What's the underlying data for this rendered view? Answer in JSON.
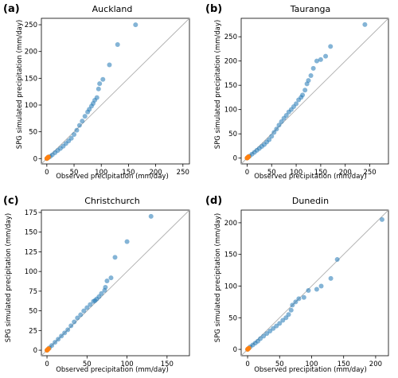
{
  "colors": {
    "main_points": "#1f77b4",
    "origin_points": "#ff7f0e",
    "identity_line": "#b0b0b0"
  },
  "chart_data": [
    {
      "type": "scatter",
      "letter": "(a)",
      "title": "Auckland",
      "xlabel": "Observed precipitation (mm/day)",
      "ylabel": "SPG simulated precipitation (mm/day)",
      "xlim": [
        -10,
        262
      ],
      "ylim": [
        -10,
        262
      ],
      "xticks": [
        0,
        50,
        100,
        150,
        200,
        250
      ],
      "yticks": [
        0,
        50,
        100,
        150,
        200,
        250
      ],
      "identity_line": true,
      "series": [
        {
          "values": [
            [
              0,
              0
            ],
            [
              3,
              2
            ],
            [
              6,
              4
            ],
            [
              10,
              7
            ],
            [
              15,
              11
            ],
            [
              20,
              15
            ],
            [
              25,
              19
            ],
            [
              30,
              23
            ],
            [
              35,
              28
            ],
            [
              40,
              33
            ],
            [
              45,
              38
            ],
            [
              50,
              45
            ],
            [
              55,
              53
            ],
            [
              60,
              62
            ],
            [
              65,
              70
            ],
            [
              70,
              79
            ],
            [
              75,
              87
            ],
            [
              78,
              92
            ],
            [
              82,
              98
            ],
            [
              85,
              103
            ],
            [
              88,
              109
            ],
            [
              92,
              114
            ],
            [
              95,
              130
            ],
            [
              97,
              140
            ],
            [
              103,
              148
            ],
            [
              115,
              175
            ],
            [
              130,
              213
            ],
            [
              163,
              250
            ]
          ]
        },
        {
          "values": [
            [
              0,
              0
            ],
            [
              1,
              1
            ],
            [
              2,
              2
            ],
            [
              3,
              3
            ]
          ]
        }
      ]
    },
    {
      "type": "scatter",
      "letter": "(b)",
      "title": "Tauranga",
      "xlabel": "Observed precipitation (mm/day)",
      "ylabel": "SPG simulated precipitation (mm/day)",
      "xlim": [
        -12,
        288
      ],
      "ylim": [
        -12,
        288
      ],
      "xticks": [
        0,
        50,
        100,
        150,
        200,
        250
      ],
      "yticks": [
        0,
        50,
        100,
        150,
        200,
        250
      ],
      "identity_line": true,
      "series": [
        {
          "values": [
            [
              0,
              0
            ],
            [
              5,
              4
            ],
            [
              10,
              8
            ],
            [
              15,
              12
            ],
            [
              20,
              16
            ],
            [
              25,
              20
            ],
            [
              30,
              24
            ],
            [
              35,
              28
            ],
            [
              40,
              33
            ],
            [
              45,
              38
            ],
            [
              50,
              45
            ],
            [
              55,
              53
            ],
            [
              60,
              60
            ],
            [
              65,
              68
            ],
            [
              70,
              75
            ],
            [
              75,
              82
            ],
            [
              80,
              88
            ],
            [
              85,
              95
            ],
            [
              90,
              100
            ],
            [
              95,
              106
            ],
            [
              100,
              112
            ],
            [
              105,
              120
            ],
            [
              110,
              125
            ],
            [
              113,
              130
            ],
            [
              118,
              140
            ],
            [
              122,
              153
            ],
            [
              125,
              160
            ],
            [
              130,
              170
            ],
            [
              135,
              185
            ],
            [
              142,
              200
            ],
            [
              150,
              203
            ],
            [
              160,
              210
            ],
            [
              170,
              230
            ],
            [
              240,
              275
            ]
          ]
        },
        {
          "values": [
            [
              0,
              0
            ],
            [
              1,
              1
            ],
            [
              2,
              2
            ],
            [
              3,
              3
            ]
          ]
        }
      ]
    },
    {
      "type": "scatter",
      "letter": "(c)",
      "title": "Christchurch",
      "xlabel": "Observed precipitation (mm/day)",
      "ylabel": "SPG simulated precipitation (mm/day)",
      "xlim": [
        -7,
        178
      ],
      "ylim": [
        -7,
        178
      ],
      "xticks": [
        0,
        50,
        100,
        150
      ],
      "yticks": [
        0,
        25,
        50,
        75,
        100,
        125,
        150,
        175
      ],
      "identity_line": true,
      "series": [
        {
          "values": [
            [
              0,
              0
            ],
            [
              3,
              3
            ],
            [
              6,
              6
            ],
            [
              10,
              10
            ],
            [
              14,
              14
            ],
            [
              18,
              18
            ],
            [
              22,
              22
            ],
            [
              26,
              26
            ],
            [
              30,
              31
            ],
            [
              34,
              36
            ],
            [
              38,
              41
            ],
            [
              42,
              45
            ],
            [
              46,
              50
            ],
            [
              50,
              54
            ],
            [
              54,
              58
            ],
            [
              58,
              62
            ],
            [
              60,
              63
            ],
            [
              62,
              65
            ],
            [
              65,
              68
            ],
            [
              68,
              72
            ],
            [
              72,
              76
            ],
            [
              73,
              80
            ],
            [
              75,
              88
            ],
            [
              80,
              92
            ],
            [
              85,
              118
            ],
            [
              100,
              138
            ],
            [
              130,
              170
            ]
          ]
        },
        {
          "values": [
            [
              0,
              0
            ],
            [
              1,
              1
            ],
            [
              2,
              2
            ]
          ]
        }
      ]
    },
    {
      "type": "scatter",
      "letter": "(d)",
      "title": "Dunedin",
      "xlabel": "Observed precipitation (mm/day)",
      "ylabel": "SPG simulated precipitation (mm/day)",
      "xlim": [
        -10,
        220
      ],
      "ylim": [
        -10,
        220
      ],
      "xticks": [
        0,
        50,
        100,
        150,
        200
      ],
      "yticks": [
        0,
        50,
        100,
        150,
        200
      ],
      "identity_line": true,
      "series": [
        {
          "values": [
            [
              0,
              0
            ],
            [
              4,
              4
            ],
            [
              8,
              7
            ],
            [
              12,
              10
            ],
            [
              16,
              13
            ],
            [
              20,
              17
            ],
            [
              25,
              21
            ],
            [
              30,
              25
            ],
            [
              35,
              29
            ],
            [
              40,
              33
            ],
            [
              45,
              37
            ],
            [
              50,
              41
            ],
            [
              55,
              46
            ],
            [
              60,
              50
            ],
            [
              64,
              55
            ],
            [
              68,
              62
            ],
            [
              70,
              70
            ],
            [
              75,
              75
            ],
            [
              80,
              80
            ],
            [
              88,
              82
            ],
            [
              95,
              93
            ],
            [
              108,
              95
            ],
            [
              115,
              100
            ],
            [
              130,
              112
            ],
            [
              140,
              142
            ],
            [
              210,
              205
            ]
          ]
        },
        {
          "values": [
            [
              0,
              0
            ],
            [
              1,
              1
            ],
            [
              2,
              2
            ]
          ]
        }
      ]
    }
  ]
}
